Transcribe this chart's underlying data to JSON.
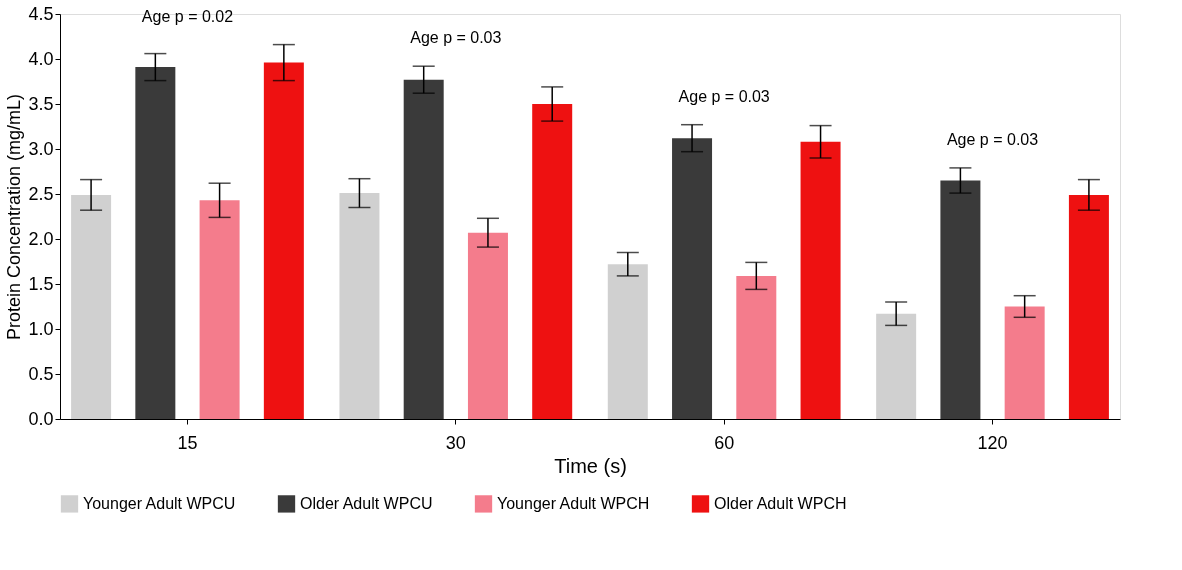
{
  "chart_data": {
    "type": "bar",
    "xlabel": "Time (s)",
    "ylabel": "Protein Concentration (mg/mL)",
    "categories": [
      "15",
      "30",
      "60",
      "120"
    ],
    "series": [
      {
        "name": "Younger Adult WPCU",
        "color": "#d0d0d0",
        "values": [
          2.49,
          2.51,
          1.72,
          1.17
        ],
        "errors": [
          0.17,
          0.16,
          0.13,
          0.13
        ]
      },
      {
        "name": "Older Adult WPCU",
        "color": "#3a3a3a",
        "values": [
          3.91,
          3.77,
          3.12,
          2.65
        ],
        "errors": [
          0.15,
          0.15,
          0.15,
          0.14
        ]
      },
      {
        "name": "Younger Adult WPCH",
        "color": "#f47c8c",
        "values": [
          2.43,
          2.07,
          1.59,
          1.25
        ],
        "errors": [
          0.19,
          0.16,
          0.15,
          0.12
        ]
      },
      {
        "name": "Older Adult WPCH",
        "color": "#ee1111",
        "values": [
          3.96,
          3.5,
          3.08,
          2.49
        ],
        "errors": [
          0.2,
          0.19,
          0.18,
          0.17
        ]
      }
    ],
    "ylim": [
      0,
      4.5
    ],
    "yticks": [
      {
        "value": 0,
        "label": "0.0"
      },
      {
        "value": 0.5,
        "label": "0.5"
      },
      {
        "value": 1,
        "label": "1.0"
      },
      {
        "value": 1.5,
        "label": "1.5"
      },
      {
        "value": 2,
        "label": "2.0"
      },
      {
        "value": 2.5,
        "label": "2.5"
      },
      {
        "value": 3,
        "label": "3.0"
      },
      {
        "value": 3.5,
        "label": "3.5"
      },
      {
        "value": 4,
        "label": "4.0"
      },
      {
        "value": 4.5,
        "label": "4.5"
      }
    ],
    "annotations": [
      "Age p = 0.02",
      "Age p = 0.03",
      "Age p = 0.03",
      "Age p = 0.03"
    ],
    "legend": "bottom",
    "grid": false
  }
}
